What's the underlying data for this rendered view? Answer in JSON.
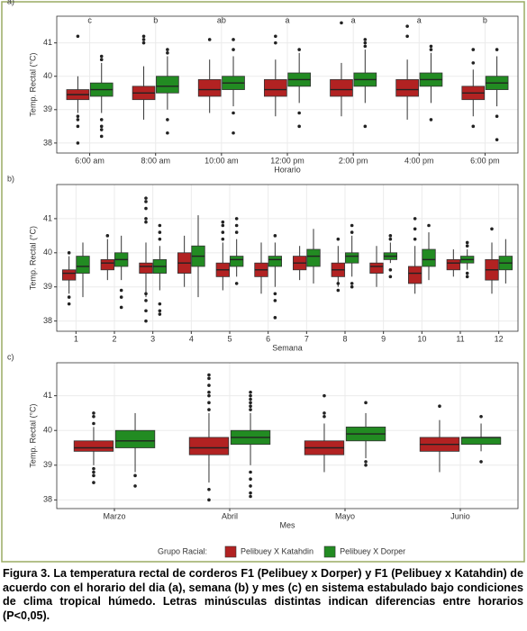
{
  "chart_data": [
    {
      "type": "box",
      "panel_label": "a)",
      "y_label": "Temp. Rectal (°C)",
      "x_label": "Horario",
      "categories": [
        "6:00 am",
        "8:00 am",
        "10:00 am",
        "12:00 pm",
        "2:00 pm",
        "4:00 pm",
        "6:00 pm"
      ],
      "letters": [
        "c",
        "b",
        "ab",
        "a",
        "a",
        "a",
        "b"
      ],
      "ylim": [
        37.7,
        41.8
      ],
      "yticks": [
        38,
        39,
        40,
        41
      ],
      "grid": true,
      "series": [
        {
          "name": "Pelibuey X Katahdin",
          "color": "#b22222",
          "stats": [
            [
              38.9,
              39.3,
              39.45,
              39.6,
              40.0
            ],
            [
              38.7,
              39.3,
              39.5,
              39.7,
              40.3
            ],
            [
              38.9,
              39.4,
              39.6,
              39.9,
              40.5
            ],
            [
              38.8,
              39.4,
              39.6,
              39.9,
              40.5
            ],
            [
              38.8,
              39.4,
              39.6,
              39.9,
              40.4
            ],
            [
              38.7,
              39.4,
              39.6,
              39.9,
              40.5
            ],
            [
              38.8,
              39.3,
              39.5,
              39.7,
              40.2
            ]
          ],
          "fliers": [
            [
              41.2,
              38.8,
              38.7,
              38.5,
              38.0
            ],
            [
              41.2,
              41.1,
              41.0
            ],
            [
              41.1
            ],
            [
              41.2,
              41.0
            ],
            [
              41.6
            ],
            [
              41.5,
              41.2
            ],
            [
              40.8,
              40.4,
              38.5
            ]
          ]
        },
        {
          "name": "Pelibuey X Dorper",
          "color": "#228b22",
          "stats": [
            [
              38.9,
              39.4,
              39.6,
              39.8,
              40.4
            ],
            [
              39.0,
              39.5,
              39.7,
              40.0,
              40.6
            ],
            [
              39.1,
              39.6,
              39.8,
              40.0,
              40.6
            ],
            [
              39.2,
              39.7,
              39.9,
              40.1,
              40.7
            ],
            [
              39.2,
              39.7,
              39.9,
              40.1,
              40.8
            ],
            [
              39.2,
              39.7,
              39.9,
              40.1,
              40.7
            ],
            [
              39.1,
              39.6,
              39.8,
              40.0,
              40.6
            ]
          ],
          "fliers": [
            [
              40.6,
              40.5,
              38.7,
              38.5,
              38.4,
              38.2
            ],
            [
              40.8,
              40.7,
              38.7,
              38.3
            ],
            [
              41.1,
              40.8,
              38.9,
              38.3
            ],
            [
              40.8,
              38.9,
              38.5
            ],
            [
              41.1,
              41.0,
              40.9,
              38.5
            ],
            [
              40.9,
              40.8,
              38.7
            ],
            [
              40.8,
              38.8,
              38.1
            ]
          ]
        }
      ]
    },
    {
      "type": "box",
      "panel_label": "b)",
      "y_label": "Temp. Rectal (°C)",
      "x_label": "Semana",
      "categories": [
        "1",
        "2",
        "3",
        "4",
        "5",
        "6",
        "7",
        "8",
        "9",
        "10",
        "11",
        "12"
      ],
      "ylim": [
        37.7,
        42.0
      ],
      "yticks": [
        38,
        39,
        40,
        41
      ],
      "grid": true,
      "series": [
        {
          "color": "#b22222",
          "stats": [
            [
              38.8,
              39.2,
              39.4,
              39.5,
              39.9
            ],
            [
              39.2,
              39.5,
              39.7,
              39.8,
              40.4
            ],
            [
              38.7,
              39.4,
              39.6,
              39.7,
              40.3
            ],
            [
              39.0,
              39.4,
              39.7,
              40.0,
              40.5
            ],
            [
              38.9,
              39.3,
              39.5,
              39.7,
              40.3
            ],
            [
              38.8,
              39.3,
              39.5,
              39.7,
              40.3
            ],
            [
              39.2,
              39.5,
              39.7,
              39.9,
              40.2
            ],
            [
              39.0,
              39.3,
              39.5,
              39.7,
              40.2
            ],
            [
              39.0,
              39.4,
              39.6,
              39.7,
              40.2
            ],
            [
              38.8,
              39.1,
              39.4,
              39.6,
              40.2
            ],
            [
              39.3,
              39.5,
              39.7,
              39.8,
              40.1
            ],
            [
              38.8,
              39.2,
              39.5,
              39.8,
              40.3
            ]
          ],
          "fliers": [
            [
              40.0,
              38.7,
              38.5
            ],
            [
              40.5
            ],
            [
              41.6,
              41.5,
              41.3,
              41.0,
              40.9,
              38.8,
              38.6,
              38.3,
              38.0
            ],
            [],
            [
              40.9,
              40.8,
              40.6,
              40.4
            ],
            [],
            [],
            [
              40.4,
              39.1,
              38.9
            ],
            [],
            [
              41.0,
              40.7,
              40.4
            ],
            [],
            [
              40.7
            ]
          ]
        },
        {
          "color": "#228b22",
          "stats": [
            [
              38.7,
              39.4,
              39.6,
              39.9,
              40.3
            ],
            [
              39.2,
              39.6,
              39.8,
              40.0,
              40.5
            ],
            [
              38.9,
              39.4,
              39.6,
              39.8,
              40.2
            ],
            [
              38.7,
              39.6,
              39.9,
              40.2,
              41.1
            ],
            [
              39.3,
              39.6,
              39.8,
              39.9,
              40.4
            ],
            [
              39.0,
              39.6,
              39.8,
              39.9,
              40.3
            ],
            [
              39.1,
              39.6,
              39.9,
              40.1,
              40.7
            ],
            [
              39.3,
              39.7,
              39.9,
              40.0,
              40.5
            ],
            [
              39.7,
              39.8,
              39.9,
              40.0,
              40.3
            ],
            [
              39.2,
              39.6,
              39.8,
              40.1,
              40.6
            ],
            [
              39.5,
              39.7,
              39.8,
              39.9,
              40.1
            ],
            [
              39.1,
              39.5,
              39.7,
              39.9,
              40.4
            ]
          ],
          "fliers": [
            [],
            [
              38.9,
              38.7,
              38.4
            ],
            [
              40.8,
              40.6,
              40.4,
              38.5,
              38.3,
              38.2
            ],
            [],
            [
              41.0,
              40.8,
              40.6,
              39.1
            ],
            [
              40.5,
              38.8,
              38.6,
              38.1
            ],
            [],
            [
              40.8,
              40.6,
              39.1,
              39.0
            ],
            [
              40.5,
              40.4,
              39.5,
              39.3
            ],
            [
              40.8
            ],
            [
              40.3,
              40.2,
              39.4,
              39.3
            ],
            []
          ]
        }
      ]
    },
    {
      "type": "box",
      "panel_label": "c)",
      "y_label": "Temp. Rectal (°C)",
      "x_label": "Mes",
      "categories": [
        "Marzo",
        "Abril",
        "Mayo",
        "Junio"
      ],
      "ylim": [
        37.75,
        41.95
      ],
      "yticks": [
        38,
        39,
        40,
        41
      ],
      "grid": true,
      "series": [
        {
          "color": "#b22222",
          "stats": [
            [
              39.0,
              39.4,
              39.5,
              39.7,
              40.1
            ],
            [
              38.5,
              39.3,
              39.5,
              39.8,
              40.5
            ],
            [
              38.8,
              39.3,
              39.5,
              39.7,
              40.2
            ],
            [
              38.8,
              39.4,
              39.6,
              39.8,
              40.3
            ]
          ],
          "fliers": [
            [
              40.5,
              40.4,
              40.2,
              38.9,
              38.8,
              38.7,
              38.5
            ],
            [
              41.6,
              41.5,
              41.3,
              41.1,
              41.0,
              40.8,
              40.6,
              38.3,
              38.0
            ],
            [
              41.0,
              40.5,
              40.4
            ],
            [
              40.7
            ]
          ]
        },
        {
          "color": "#228b22",
          "stats": [
            [
              38.8,
              39.5,
              39.7,
              40.0,
              40.5
            ],
            [
              39.0,
              39.6,
              39.8,
              40.0,
              40.5
            ],
            [
              39.2,
              39.7,
              39.9,
              40.1,
              40.5
            ],
            [
              39.4,
              39.6,
              39.8,
              39.8,
              40.2
            ]
          ],
          "fliers": [
            [
              38.7,
              38.4
            ],
            [
              41.1,
              41.0,
              40.9,
              40.8,
              40.7,
              40.6,
              38.8,
              38.6,
              38.4,
              38.2,
              38.1
            ],
            [
              40.8,
              39.1,
              39.0
            ],
            [
              40.4,
              39.1
            ]
          ]
        }
      ]
    }
  ],
  "legend": {
    "title": "Grupo Racial:",
    "position": "bottom"
  },
  "caption": "Figura 3. La temperatura rectal de corderos F1 (Pelibuey x Dorper)  y F1 (Pelibuey x Katahdin) de acuerdo con el horario del dia (a), semana (b) y mes (c) en sistema estabulado bajo condiciones de clima tropical húmedo. Letras minúsculas distintas indican diferencias entre horarios (P<0,05)."
}
